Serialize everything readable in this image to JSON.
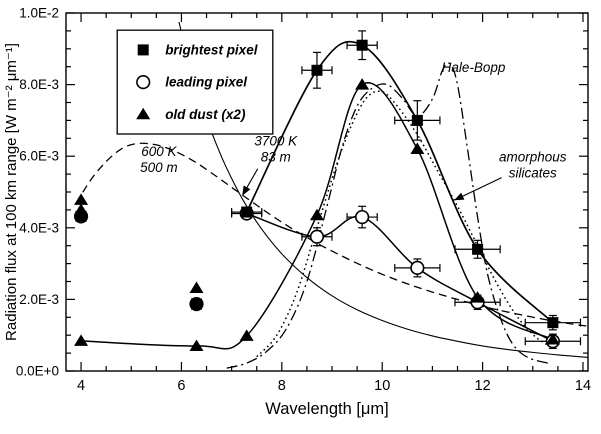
{
  "chart_data": {
    "type": "line-scatter",
    "title": "",
    "xlabel": "Wavelength [μm]",
    "ylabel": "Radiation flux at 100 km range [W m⁻² μm⁻¹]",
    "xlim": [
      3.7,
      14.1
    ],
    "ylim": [
      0,
      0.01
    ],
    "grid": false,
    "x_ticks": {
      "major": [
        4,
        6,
        8,
        10,
        12,
        14
      ],
      "labels": [
        "4",
        "6",
        "8",
        "10",
        "12",
        "14"
      ],
      "minor_step": 0.5
    },
    "y_ticks": {
      "major": [
        0,
        0.002,
        0.004,
        0.006,
        0.008,
        0.01
      ],
      "labels": [
        "0.0E+0",
        "2.0E-3",
        "4.0E-3",
        "6.0E-3",
        "8.0E-3",
        "1.0E-2"
      ],
      "minor_step": 0.0005
    },
    "series": [
      {
        "name": "brightest pixel",
        "marker": "square",
        "points": [
          {
            "x": 7.3,
            "y": 0.00444,
            "xerr": 0.3
          },
          {
            "x": 8.7,
            "y": 0.0084,
            "xerr": 0.3,
            "yerr": 0.0005
          },
          {
            "x": 9.6,
            "y": 0.0091,
            "xerr": 0.3,
            "yerr": 0.0004
          },
          {
            "x": 10.7,
            "y": 0.007,
            "xerr": 0.45,
            "yerr": 0.00055
          },
          {
            "x": 11.9,
            "y": 0.0034,
            "xerr": 0.45,
            "yerr": 0.00025
          },
          {
            "x": 13.4,
            "y": 0.00135,
            "xerr": 0.55,
            "yerr": 0.0002
          }
        ],
        "isolated_points": [
          {
            "x": 4,
            "y": 0.00432
          },
          {
            "x": 6.3,
            "y": 0.00187
          }
        ]
      },
      {
        "name": "leading pixel",
        "marker": "circle",
        "points": [
          {
            "x": 7.3,
            "y": 0.0044,
            "xerr": 0.3
          },
          {
            "x": 8.7,
            "y": 0.00375,
            "xerr": 0.3,
            "yerr": 0.00025
          },
          {
            "x": 9.6,
            "y": 0.0043,
            "xerr": 0.3,
            "yerr": 0.0003
          },
          {
            "x": 10.7,
            "y": 0.00288,
            "xerr": 0.45,
            "yerr": 0.00025
          },
          {
            "x": 11.9,
            "y": 0.00192,
            "xerr": 0.45,
            "yerr": 0.0002
          },
          {
            "x": 13.4,
            "y": 0.00083,
            "xerr": 0.55,
            "yerr": 0.0002
          }
        ],
        "isolated_points": [
          {
            "x": 4,
            "y": 0.00432
          },
          {
            "x": 6.3,
            "y": 0.00187
          }
        ]
      },
      {
        "name": "old dust (x2)",
        "marker": "triangle",
        "points": [
          {
            "x": 4,
            "y": 0.00084
          },
          {
            "x": 6.3,
            "y": 0.0007
          },
          {
            "x": 7.3,
            "y": 0.00098
          },
          {
            "x": 8.7,
            "y": 0.00435
          },
          {
            "x": 9.6,
            "y": 0.008
          },
          {
            "x": 10.7,
            "y": 0.0062
          },
          {
            "x": 11.9,
            "y": 0.00205
          },
          {
            "x": 13.4,
            "y": 0.00088
          }
        ],
        "isolated_points": [
          {
            "x": 4,
            "y": 0.00478
          },
          {
            "x": 4,
            "y": 0.0045
          },
          {
            "x": 6.3,
            "y": 0.00232
          }
        ]
      }
    ],
    "curves": [
      {
        "name": "600 K 500 m blackbody",
        "style": "dashed",
        "points": [
          [
            3.9,
            0.00468
          ],
          [
            4.2,
            0.00535
          ],
          [
            4.5,
            0.00585
          ],
          [
            4.8,
            0.0062
          ],
          [
            5.1,
            0.00635
          ],
          [
            5.45,
            0.00633
          ],
          [
            5.8,
            0.00618
          ],
          [
            6.2,
            0.0059
          ],
          [
            6.6,
            0.00553
          ],
          [
            7.0,
            0.00513
          ],
          [
            7.4,
            0.00473
          ],
          [
            7.8,
            0.00434
          ],
          [
            8.2,
            0.00398
          ],
          [
            8.7,
            0.00357
          ],
          [
            9.2,
            0.00321
          ],
          [
            9.7,
            0.00288
          ],
          [
            10.2,
            0.00259
          ],
          [
            10.7,
            0.00234
          ],
          [
            11.2,
            0.00212
          ],
          [
            11.7,
            0.00192
          ],
          [
            12.2,
            0.00174
          ],
          [
            12.7,
            0.00159
          ],
          [
            13.2,
            0.00145
          ],
          [
            13.7,
            0.00133
          ],
          [
            14.1,
            0.00125
          ]
        ]
      },
      {
        "name": "3700 K 83 m blackbody",
        "style": "solid-thin",
        "points": [
          [
            5.95,
            0.00975
          ],
          [
            6.2,
            0.00839
          ],
          [
            6.5,
            0.00706
          ],
          [
            6.8,
            0.00598
          ],
          [
            7.1,
            0.0051
          ],
          [
            7.3,
            0.0046
          ],
          [
            7.6,
            0.00396
          ],
          [
            8.0,
            0.00327
          ],
          [
            8.5,
            0.00261
          ],
          [
            9.0,
            0.0021
          ],
          [
            9.5,
            0.00171
          ],
          [
            10.0,
            0.00141
          ],
          [
            10.5,
            0.00117
          ],
          [
            11.0,
            0.00098
          ],
          [
            11.5,
            0.00083
          ],
          [
            12.0,
            0.0007
          ],
          [
            12.5,
            0.0006
          ],
          [
            13.0,
            0.00052
          ],
          [
            13.5,
            0.00045
          ],
          [
            14.1,
            0.00038
          ]
        ]
      },
      {
        "name": "Hale-Bopp",
        "style": "dashdot",
        "points": [
          [
            6.9,
            8e-05
          ],
          [
            7.3,
            0.00022
          ],
          [
            7.7,
            0.00055
          ],
          [
            8.1,
            0.0012
          ],
          [
            8.5,
            0.0025
          ],
          [
            8.9,
            0.0046
          ],
          [
            9.2,
            0.00625
          ],
          [
            9.5,
            0.0074
          ],
          [
            9.8,
            0.0079
          ],
          [
            10.1,
            0.008
          ],
          [
            10.4,
            0.00762
          ],
          [
            10.7,
            0.00712
          ],
          [
            11.0,
            0.0076
          ],
          [
            11.2,
            0.0084
          ],
          [
            11.35,
            0.00858
          ],
          [
            11.5,
            0.008
          ],
          [
            11.7,
            0.0062
          ],
          [
            11.9,
            0.0043
          ],
          [
            12.1,
            0.0027
          ],
          [
            12.35,
            0.0015
          ],
          [
            12.6,
            0.00075
          ],
          [
            12.9,
            0.00038
          ],
          [
            13.3,
            0.00022
          ]
        ]
      },
      {
        "name": "amorphous silicates",
        "style": "dotted",
        "points": [
          [
            7.5,
            0.0004
          ],
          [
            7.9,
            0.001
          ],
          [
            8.3,
            0.0022
          ],
          [
            8.7,
            0.004
          ],
          [
            9.1,
            0.0058
          ],
          [
            9.4,
            0.0069
          ],
          [
            9.7,
            0.00765
          ],
          [
            10.0,
            0.0078
          ],
          [
            10.3,
            0.0074
          ],
          [
            10.7,
            0.0066
          ],
          [
            11.1,
            0.0056
          ],
          [
            11.5,
            0.0046
          ],
          [
            11.9,
            0.0035
          ],
          [
            12.3,
            0.0024
          ],
          [
            12.7,
            0.0015
          ],
          [
            13.1,
            0.0009
          ],
          [
            13.5,
            0.0006
          ]
        ]
      }
    ],
    "legend": {
      "x1": 4.72,
      "x2": 7.82,
      "y_top": 0.00952,
      "y_bottom": 0.00662,
      "entries": [
        {
          "marker": "square",
          "label": "brightest pixel"
        },
        {
          "marker": "circle",
          "label": "leading pixel"
        },
        {
          "marker": "triangle",
          "label": "old dust (x2)"
        }
      ]
    },
    "annotations": [
      {
        "id": "600k-500m",
        "lines": [
          "600 K",
          "500 m"
        ],
        "x": 5.55,
        "y": 0.006
      },
      {
        "id": "3700k-83m",
        "lines": [
          "3700 K",
          "83 m"
        ],
        "x": 7.88,
        "y": 0.0063,
        "arrow": {
          "x1": 7.52,
          "y1": 0.00565,
          "x2": 7.22,
          "y2": 0.00492
        }
      },
      {
        "id": "hale-bopp",
        "lines": [
          "Hale-Bopp"
        ],
        "x": 11.82,
        "y": 0.00835
      },
      {
        "id": "amorphous-silicates",
        "lines": [
          "amorphous",
          "silicates"
        ],
        "x": 13.0,
        "y": 0.00585,
        "arrow": {
          "x1": 12.38,
          "y1": 0.0054,
          "x2": 11.45,
          "y2": 0.00478
        }
      }
    ]
  }
}
